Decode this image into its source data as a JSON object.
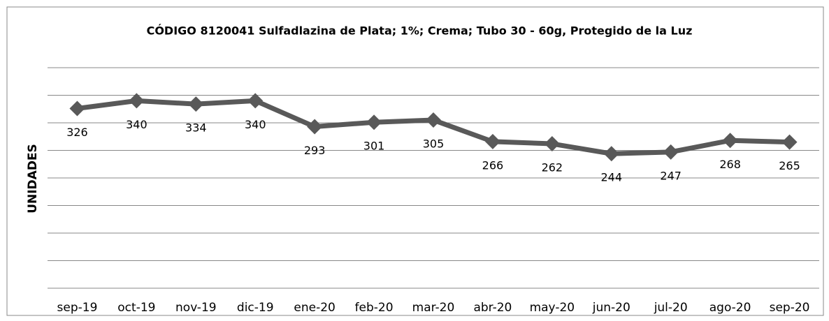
{
  "chart_data": {
    "type": "line",
    "title": "CÓDIGO 8120041 Sulfadlazina de Plata; 1%; Crema; Tubo 30 - 60g, Protegido de la Luz",
    "y_label": "UNIDADES",
    "categories": [
      "sep-19",
      "oct-19",
      "nov-19",
      "dic-19",
      "ene-20",
      "feb-20",
      "mar-20",
      "abr-20",
      "may-20",
      "jun-20",
      "jul-20",
      "ago-20",
      "sep-20"
    ],
    "values": [
      326,
      340,
      334,
      340,
      293,
      301,
      305,
      266,
      262,
      244,
      247,
      268,
      265
    ],
    "color": "#595959",
    "ylim": [
      0,
      400
    ],
    "yticks": [
      0,
      50,
      100,
      150,
      200,
      250,
      300,
      350,
      400
    ],
    "grid": true
  }
}
